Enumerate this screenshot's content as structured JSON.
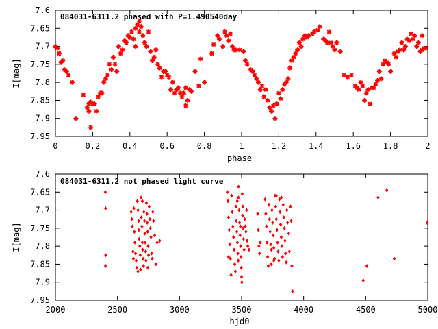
{
  "chart_data": [
    {
      "type": "scatter",
      "title": "084031-6311.2 phased with P=1.490540day",
      "xlabel": "phase",
      "ylabel": "I[mag]",
      "xlim": [
        0,
        2
      ],
      "ylim": [
        7.6,
        7.95
      ],
      "y_inverted": true,
      "x_ticks": [
        "0",
        "0.2",
        "0.4",
        "0.6",
        "0.8",
        "1",
        "1.2",
        "1.4",
        "1.6",
        "1.8",
        "2"
      ],
      "y_ticks": [
        "7.6",
        "7.65",
        "7.7",
        "7.75",
        "7.8",
        "7.85",
        "7.9",
        "7.95"
      ],
      "marker": "star",
      "color": "#ff0000",
      "grid": false,
      "points": [
        [
          0.0,
          7.7
        ],
        [
          0.01,
          7.705
        ],
        [
          0.02,
          7.72
        ],
        [
          0.03,
          7.745
        ],
        [
          0.04,
          7.74
        ],
        [
          0.05,
          7.765
        ],
        [
          0.06,
          7.77
        ],
        [
          0.07,
          7.78
        ],
        [
          0.09,
          7.8
        ],
        [
          0.11,
          7.9
        ],
        [
          0.15,
          7.835
        ],
        [
          0.17,
          7.87
        ],
        [
          0.18,
          7.88
        ],
        [
          0.18,
          7.86
        ],
        [
          0.19,
          7.855
        ],
        [
          0.19,
          7.925
        ],
        [
          0.2,
          7.86
        ],
        [
          0.21,
          7.86
        ],
        [
          0.22,
          7.88
        ],
        [
          0.23,
          7.84
        ],
        [
          0.24,
          7.83
        ],
        [
          0.25,
          7.83
        ],
        [
          0.26,
          7.8
        ],
        [
          0.27,
          7.79
        ],
        [
          0.28,
          7.78
        ],
        [
          0.29,
          7.75
        ],
        [
          0.3,
          7.765
        ],
        [
          0.31,
          7.73
        ],
        [
          0.32,
          7.75
        ],
        [
          0.33,
          7.77
        ],
        [
          0.34,
          7.7
        ],
        [
          0.35,
          7.72
        ],
        [
          0.36,
          7.71
        ],
        [
          0.37,
          7.685
        ],
        [
          0.38,
          7.69
        ],
        [
          0.39,
          7.67
        ],
        [
          0.4,
          7.675
        ],
        [
          0.41,
          7.66
        ],
        [
          0.42,
          7.68
        ],
        [
          0.43,
          7.65
        ],
        [
          0.43,
          7.7
        ],
        [
          0.44,
          7.64
        ],
        [
          0.45,
          7.63
        ],
        [
          0.45,
          7.66
        ],
        [
          0.46,
          7.645
        ],
        [
          0.47,
          7.67
        ],
        [
          0.48,
          7.69
        ],
        [
          0.49,
          7.7
        ],
        [
          0.5,
          7.66
        ],
        [
          0.51,
          7.715
        ],
        [
          0.52,
          7.74
        ],
        [
          0.53,
          7.73
        ],
        [
          0.54,
          7.71
        ],
        [
          0.55,
          7.75
        ],
        [
          0.56,
          7.76
        ],
        [
          0.57,
          7.785
        ],
        [
          0.58,
          7.77
        ],
        [
          0.59,
          7.77
        ],
        [
          0.6,
          7.78
        ],
        [
          0.61,
          7.785
        ],
        [
          0.62,
          7.82
        ],
        [
          0.63,
          7.8
        ],
        [
          0.64,
          7.83
        ],
        [
          0.65,
          7.82
        ],
        [
          0.66,
          7.815
        ],
        [
          0.67,
          7.83
        ],
        [
          0.68,
          7.84
        ],
        [
          0.69,
          7.83
        ],
        [
          0.7,
          7.815
        ],
        [
          0.7,
          7.865
        ],
        [
          0.71,
          7.85
        ],
        [
          0.72,
          7.82
        ],
        [
          0.73,
          7.825
        ],
        [
          0.75,
          7.77
        ],
        [
          0.77,
          7.81
        ],
        [
          0.78,
          7.735
        ],
        [
          0.8,
          7.8
        ],
        [
          0.84,
          7.72
        ],
        [
          0.85,
          7.695
        ],
        [
          0.87,
          7.67
        ],
        [
          0.88,
          7.68
        ],
        [
          0.9,
          7.7
        ],
        [
          0.91,
          7.66
        ],
        [
          0.92,
          7.67
        ],
        [
          0.93,
          7.685
        ],
        [
          0.94,
          7.665
        ],
        [
          0.95,
          7.7
        ],
        [
          0.96,
          7.71
        ],
        [
          0.97,
          7.71
        ],
        [
          0.99,
          7.71
        ],
        [
          1.01,
          7.715
        ],
        [
          1.02,
          7.74
        ],
        [
          1.03,
          7.75
        ],
        [
          1.05,
          7.765
        ],
        [
          1.06,
          7.77
        ],
        [
          1.07,
          7.78
        ],
        [
          1.08,
          7.79
        ],
        [
          1.09,
          7.8
        ],
        [
          1.1,
          7.82
        ],
        [
          1.11,
          7.81
        ],
        [
          1.12,
          7.84
        ],
        [
          1.13,
          7.82
        ],
        [
          1.14,
          7.85
        ],
        [
          1.15,
          7.87
        ],
        [
          1.16,
          7.88
        ],
        [
          1.17,
          7.865
        ],
        [
          1.18,
          7.9
        ],
        [
          1.19,
          7.86
        ],
        [
          1.2,
          7.83
        ],
        [
          1.21,
          7.845
        ],
        [
          1.22,
          7.82
        ],
        [
          1.23,
          7.805
        ],
        [
          1.24,
          7.8
        ],
        [
          1.25,
          7.79
        ],
        [
          1.26,
          7.76
        ],
        [
          1.27,
          7.74
        ],
        [
          1.28,
          7.73
        ],
        [
          1.29,
          7.72
        ],
        [
          1.3,
          7.71
        ],
        [
          1.31,
          7.69
        ],
        [
          1.32,
          7.7
        ],
        [
          1.33,
          7.68
        ],
        [
          1.34,
          7.67
        ],
        [
          1.35,
          7.675
        ],
        [
          1.36,
          7.67
        ],
        [
          1.38,
          7.665
        ],
        [
          1.39,
          7.66
        ],
        [
          1.41,
          7.655
        ],
        [
          1.42,
          7.645
        ],
        [
          1.44,
          7.68
        ],
        [
          1.45,
          7.685
        ],
        [
          1.46,
          7.69
        ],
        [
          1.47,
          7.66
        ],
        [
          1.48,
          7.69
        ],
        [
          1.49,
          7.7
        ],
        [
          1.5,
          7.71
        ],
        [
          1.51,
          7.69
        ],
        [
          1.53,
          7.715
        ],
        [
          1.55,
          7.78
        ],
        [
          1.57,
          7.785
        ],
        [
          1.59,
          7.78
        ],
        [
          1.61,
          7.81
        ],
        [
          1.62,
          7.815
        ],
        [
          1.63,
          7.82
        ],
        [
          1.64,
          7.8
        ],
        [
          1.65,
          7.81
        ],
        [
          1.66,
          7.85
        ],
        [
          1.67,
          7.83
        ],
        [
          1.68,
          7.82
        ],
        [
          1.69,
          7.86
        ],
        [
          1.7,
          7.815
        ],
        [
          1.71,
          7.815
        ],
        [
          1.72,
          7.805
        ],
        [
          1.73,
          7.795
        ],
        [
          1.74,
          7.77
        ],
        [
          1.75,
          7.79
        ],
        [
          1.76,
          7.75
        ],
        [
          1.77,
          7.74
        ],
        [
          1.78,
          7.745
        ],
        [
          1.79,
          7.75
        ],
        [
          1.8,
          7.77
        ],
        [
          1.82,
          7.72
        ],
        [
          1.83,
          7.73
        ],
        [
          1.84,
          7.715
        ],
        [
          1.85,
          7.71
        ],
        [
          1.86,
          7.69
        ],
        [
          1.87,
          7.71
        ],
        [
          1.88,
          7.7
        ],
        [
          1.89,
          7.68
        ],
        [
          1.9,
          7.685
        ],
        [
          1.91,
          7.665
        ],
        [
          1.92,
          7.68
        ],
        [
          1.93,
          7.67
        ],
        [
          1.94,
          7.7
        ],
        [
          1.95,
          7.69
        ],
        [
          1.96,
          7.715
        ],
        [
          1.97,
          7.71
        ],
        [
          1.98,
          7.705
        ],
        [
          1.99,
          7.705
        ],
        [
          1.97,
          7.67
        ]
      ]
    },
    {
      "type": "scatter",
      "title": "084031-6311.2 not phased light curve",
      "xlabel": "hjd0",
      "ylabel": "I[mag]",
      "xlim": [
        2000,
        5000
      ],
      "ylim": [
        7.6,
        7.95
      ],
      "y_inverted": true,
      "x_ticks": [
        "2000",
        "2500",
        "3000",
        "3500",
        "4000",
        "4500",
        "5000"
      ],
      "y_ticks": [
        "7.6",
        "7.65",
        "7.7",
        "7.75",
        "7.8",
        "7.85",
        "7.9",
        "7.95"
      ],
      "marker": "diamond",
      "color": "#ff0000",
      "grid": false,
      "points": [
        [
          2402,
          7.65
        ],
        [
          2404,
          7.695
        ],
        [
          2405,
          7.825
        ],
        [
          2403,
          7.855
        ],
        [
          2610,
          7.705
        ],
        [
          2615,
          7.725
        ],
        [
          2620,
          7.745
        ],
        [
          2625,
          7.815
        ],
        [
          2628,
          7.835
        ],
        [
          2632,
          7.695
        ],
        [
          2636,
          7.76
        ],
        [
          2640,
          7.79
        ],
        [
          2645,
          7.82
        ],
        [
          2650,
          7.84
        ],
        [
          2655,
          7.86
        ],
        [
          2660,
          7.675
        ],
        [
          2665,
          7.7
        ],
        [
          2670,
          7.73
        ],
        [
          2672,
          7.755
        ],
        [
          2675,
          7.78
        ],
        [
          2680,
          7.8
        ],
        [
          2683,
          7.825
        ],
        [
          2686,
          7.865
        ],
        [
          2690,
          7.665
        ],
        [
          2693,
          7.72
        ],
        [
          2697,
          7.745
        ],
        [
          2700,
          7.79
        ],
        [
          2703,
          7.81
        ],
        [
          2707,
          7.835
        ],
        [
          2710,
          7.855
        ],
        [
          2713,
          7.705
        ],
        [
          2717,
          7.73
        ],
        [
          2720,
          7.765
        ],
        [
          2723,
          7.79
        ],
        [
          2727,
          7.815
        ],
        [
          2730,
          7.84
        ],
        [
          2733,
          7.68
        ],
        [
          2737,
          7.71
        ],
        [
          2740,
          7.735
        ],
        [
          2743,
          7.76
        ],
        [
          2747,
          7.8
        ],
        [
          2750,
          7.825
        ],
        [
          2755,
          7.69
        ],
        [
          2760,
          7.725
        ],
        [
          2765,
          7.75
        ],
        [
          2770,
          7.775
        ],
        [
          2775,
          7.82
        ],
        [
          2780,
          7.835
        ],
        [
          2785,
          7.705
        ],
        [
          2790,
          7.73
        ],
        [
          2800,
          7.77
        ],
        [
          2810,
          7.85
        ],
        [
          2820,
          7.79
        ],
        [
          2840,
          7.785
        ],
        [
          2700,
          7.675
        ],
        [
          2665,
          7.87
        ],
        [
          2745,
          7.86
        ],
        [
          3385,
          7.65
        ],
        [
          3390,
          7.675
        ],
        [
          3395,
          7.72
        ],
        [
          3400,
          7.755
        ],
        [
          3405,
          7.795
        ],
        [
          3410,
          7.835
        ],
        [
          3415,
          7.88
        ],
        [
          3420,
          7.66
        ],
        [
          3425,
          7.705
        ],
        [
          3430,
          7.745
        ],
        [
          3435,
          7.775
        ],
        [
          3440,
          7.81
        ],
        [
          3445,
          7.85
        ],
        [
          3450,
          7.87
        ],
        [
          3455,
          7.69
        ],
        [
          3458,
          7.73
        ],
        [
          3462,
          7.76
        ],
        [
          3466,
          7.79
        ],
        [
          3470,
          7.82
        ],
        [
          3473,
          7.84
        ],
        [
          3476,
          7.635
        ],
        [
          3480,
          7.7
        ],
        [
          3484,
          7.735
        ],
        [
          3488,
          7.77
        ],
        [
          3492,
          7.8
        ],
        [
          3495,
          7.83
        ],
        [
          3498,
          7.86
        ],
        [
          3500,
          7.885
        ],
        [
          3502,
          7.9
        ],
        [
          3505,
          7.655
        ],
        [
          3508,
          7.715
        ],
        [
          3512,
          7.75
        ],
        [
          3516,
          7.78
        ],
        [
          3520,
          7.81
        ],
        [
          3525,
          7.725
        ],
        [
          3530,
          7.745
        ],
        [
          3535,
          7.76
        ],
        [
          3540,
          7.7
        ],
        [
          3545,
          7.785
        ],
        [
          3550,
          7.8
        ],
        [
          3560,
          7.81
        ],
        [
          3465,
          7.675
        ],
        [
          3475,
          7.665
        ],
        [
          3490,
          7.745
        ],
        [
          3510,
          7.69
        ],
        [
          3395,
          7.83
        ],
        [
          3630,
          7.71
        ],
        [
          3635,
          7.755
        ],
        [
          3640,
          7.8
        ],
        [
          3645,
          7.82
        ],
        [
          3650,
          7.79
        ],
        [
          3690,
          7.67
        ],
        [
          3695,
          7.71
        ],
        [
          3700,
          7.745
        ],
        [
          3705,
          7.79
        ],
        [
          3710,
          7.83
        ],
        [
          3715,
          7.855
        ],
        [
          3720,
          7.685
        ],
        [
          3725,
          7.725
        ],
        [
          3730,
          7.76
        ],
        [
          3735,
          7.795
        ],
        [
          3740,
          7.81
        ],
        [
          3745,
          7.7
        ],
        [
          3750,
          7.735
        ],
        [
          3755,
          7.77
        ],
        [
          3760,
          7.805
        ],
        [
          3765,
          7.835
        ],
        [
          3770,
          7.66
        ],
        [
          3775,
          7.69
        ],
        [
          3780,
          7.725
        ],
        [
          3785,
          7.755
        ],
        [
          3790,
          7.79
        ],
        [
          3795,
          7.815
        ],
        [
          3800,
          7.84
        ],
        [
          3805,
          7.67
        ],
        [
          3810,
          7.705
        ],
        [
          3815,
          7.74
        ],
        [
          3820,
          7.775
        ],
        [
          3825,
          7.8
        ],
        [
          3830,
          7.83
        ],
        [
          3835,
          7.685
        ],
        [
          3840,
          7.72
        ],
        [
          3845,
          7.75
        ],
        [
          3850,
          7.785
        ],
        [
          3855,
          7.82
        ],
        [
          3860,
          7.845
        ],
        [
          3865,
          7.7
        ],
        [
          3870,
          7.735
        ],
        [
          3880,
          7.765
        ],
        [
          3885,
          7.815
        ],
        [
          3895,
          7.69
        ],
        [
          3900,
          7.73
        ],
        [
          3905,
          7.855
        ],
        [
          3910,
          7.925
        ],
        [
          3780,
          7.66
        ],
        [
          3820,
          7.665
        ],
        [
          3760,
          7.84
        ],
        [
          3740,
          7.85
        ],
        [
          4480,
          7.895
        ],
        [
          4510,
          7.855
        ],
        [
          4600,
          7.665
        ],
        [
          4670,
          7.645
        ],
        [
          4730,
          7.835
        ],
        [
          4995,
          7.735
        ]
      ]
    }
  ]
}
